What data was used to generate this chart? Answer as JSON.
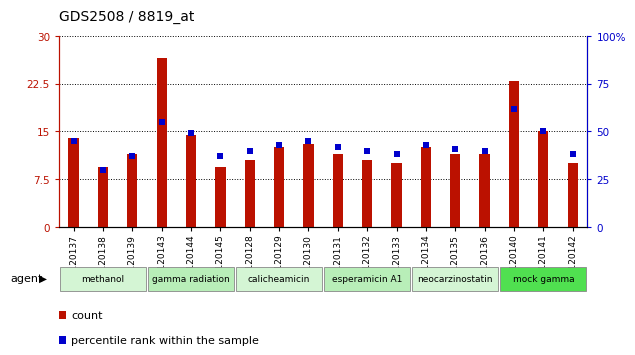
{
  "title": "GDS2508 / 8819_at",
  "samples": [
    "GSM120137",
    "GSM120138",
    "GSM120139",
    "GSM120143",
    "GSM120144",
    "GSM120145",
    "GSM120128",
    "GSM120129",
    "GSM120130",
    "GSM120131",
    "GSM120132",
    "GSM120133",
    "GSM120134",
    "GSM120135",
    "GSM120136",
    "GSM120140",
    "GSM120141",
    "GSM120142"
  ],
  "counts": [
    14.0,
    9.5,
    11.5,
    26.5,
    14.5,
    9.5,
    10.5,
    12.5,
    13.0,
    11.5,
    10.5,
    10.0,
    12.5,
    11.5,
    11.5,
    23.0,
    15.0,
    10.0
  ],
  "percentile": [
    45.0,
    30.0,
    37.0,
    55.0,
    49.0,
    37.0,
    40.0,
    43.0,
    45.0,
    42.0,
    40.0,
    38.0,
    43.0,
    41.0,
    40.0,
    62.0,
    50.0,
    38.0
  ],
  "agents": [
    {
      "label": "methanol",
      "start": 0,
      "end": 3,
      "color": "#d4f5d4"
    },
    {
      "label": "gamma radiation",
      "start": 3,
      "end": 6,
      "color": "#b8eeb8"
    },
    {
      "label": "calicheamicin",
      "start": 6,
      "end": 9,
      "color": "#d4f5d4"
    },
    {
      "label": "esperamicin A1",
      "start": 9,
      "end": 12,
      "color": "#b8eeb8"
    },
    {
      "label": "neocarzinostatin",
      "start": 12,
      "end": 15,
      "color": "#d4f5d4"
    },
    {
      "label": "mock gamma",
      "start": 15,
      "end": 18,
      "color": "#50e050"
    }
  ],
  "bar_color": "#bb1100",
  "dot_color": "#0000cc",
  "ylim_left": [
    0,
    30
  ],
  "ylim_right": [
    0,
    100
  ],
  "yticks_left": [
    0,
    7.5,
    15,
    22.5,
    30
  ],
  "yticks_right": [
    0,
    25,
    50,
    75,
    100
  ],
  "ytick_labels_left": [
    "0",
    "7.5",
    "15",
    "22.5",
    "30"
  ],
  "ytick_labels_right": [
    "0",
    "25",
    "50",
    "75",
    "100%"
  ],
  "legend_count": "count",
  "legend_pct": "percentile rank within the sample",
  "agent_label": "agent",
  "bar_width": 0.35
}
